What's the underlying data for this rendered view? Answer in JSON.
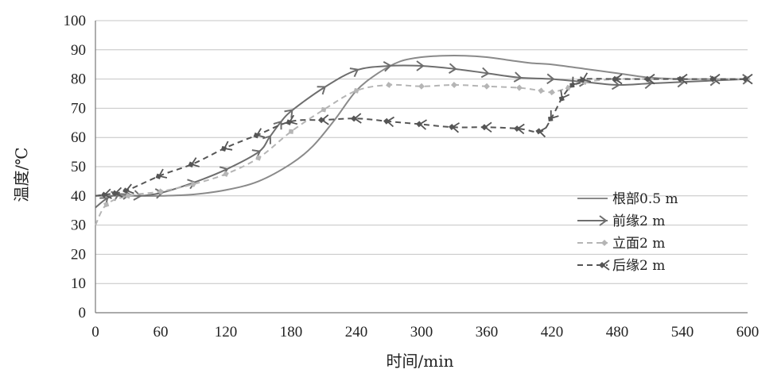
{
  "chart_data": {
    "type": "line",
    "title": "",
    "xlabel": "时间/min",
    "ylabel": "温度/℃",
    "xlim": [
      0,
      600
    ],
    "ylim": [
      0,
      100
    ],
    "xticks": [
      0,
      60,
      120,
      180,
      240,
      300,
      360,
      420,
      480,
      540,
      600
    ],
    "yticks": [
      0,
      10,
      20,
      30,
      40,
      50,
      60,
      70,
      80,
      90,
      100
    ],
    "x_tick_labels": [
      "0",
      "60",
      "120",
      "180",
      "240",
      "300",
      "360",
      "420",
      "480",
      "540",
      "600"
    ],
    "y_tick_labels": [
      "0",
      "10",
      "20",
      "30",
      "40",
      "50",
      "60",
      "70",
      "80",
      "90",
      "100"
    ],
    "grid": "horizontal",
    "legend_position": "right-middle",
    "series": [
      {
        "name": "根部0.5 m",
        "style": "solid",
        "marker": "none",
        "color": "#8a8a8a",
        "x": [
          0,
          20,
          40,
          60,
          90,
          120,
          150,
          180,
          200,
          220,
          240,
          260,
          280,
          300,
          320,
          340,
          360,
          380,
          400,
          420,
          450,
          480,
          510,
          540,
          570,
          600
        ],
        "y": [
          40,
          40,
          40,
          40,
          40.5,
          42,
          45,
          51,
          57,
          66,
          76,
          82,
          86,
          87.5,
          88,
          88,
          87.5,
          86.5,
          85.5,
          85,
          83.5,
          82,
          80.5,
          80,
          80,
          80
        ]
      },
      {
        "name": "前缘2 m",
        "style": "solid",
        "marker": "arrow",
        "color": "#6e6e6e",
        "x": [
          0,
          10,
          20,
          30,
          40,
          60,
          90,
          120,
          150,
          160,
          170,
          180,
          210,
          240,
          270,
          300,
          330,
          360,
          390,
          420,
          450,
          480,
          510,
          540,
          570,
          600
        ],
        "y": [
          36,
          39,
          40.5,
          40.5,
          40,
          41,
          44.5,
          49,
          55,
          60,
          65,
          69,
          77,
          83,
          84.5,
          84.5,
          83.5,
          82,
          80.5,
          80,
          79,
          78,
          78.5,
          79,
          79.5,
          80
        ]
      },
      {
        "name": "立面2 m",
        "style": "dashed",
        "marker": "diamond",
        "color": "#b5b5b5",
        "x": [
          0,
          10,
          30,
          60,
          90,
          120,
          150,
          180,
          210,
          240,
          270,
          300,
          330,
          360,
          390,
          410,
          420,
          435,
          450,
          480,
          510,
          540,
          570,
          600
        ],
        "y": [
          30,
          37,
          40,
          41.5,
          44,
          47.5,
          53,
          62,
          69.5,
          76,
          78,
          77.5,
          78,
          77.5,
          77,
          76,
          75.5,
          77,
          79,
          80,
          80,
          80,
          80,
          80
        ]
      },
      {
        "name": "后缘2 m",
        "style": "dashed",
        "marker": "diamond-arrow",
        "color": "#555555",
        "x": [
          0,
          10,
          20,
          30,
          60,
          90,
          120,
          150,
          180,
          210,
          240,
          270,
          300,
          330,
          360,
          390,
          410,
          420,
          430,
          440,
          450,
          480,
          510,
          540,
          570,
          600
        ],
        "y": [
          40,
          40.5,
          41,
          42,
          47,
          51,
          56.5,
          61,
          65.5,
          66,
          66.5,
          65.5,
          64.5,
          63.5,
          63.5,
          63,
          62,
          67,
          74,
          78.5,
          80,
          80,
          80,
          80,
          80,
          80
        ]
      }
    ]
  }
}
